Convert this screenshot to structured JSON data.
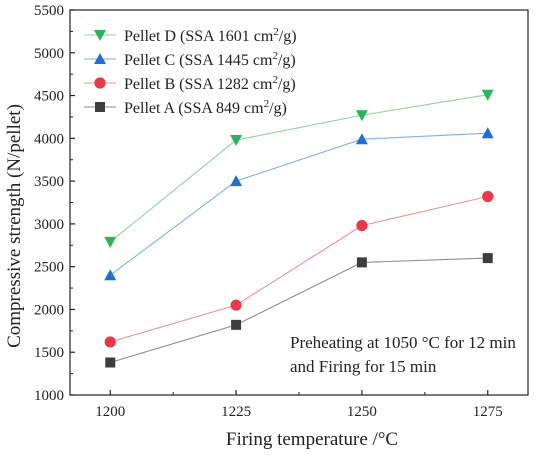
{
  "chart_data": {
    "type": "line",
    "title": "",
    "xlabel": "Firing temperature /°C",
    "ylabel": "Compressive strength (N/pellet)",
    "x": [
      1200,
      1225,
      1250,
      1275
    ],
    "xticks": [
      "1200",
      "1225",
      "1250",
      "1275"
    ],
    "xlim": [
      1192,
      1283
    ],
    "ylim": [
      1000,
      5500
    ],
    "yticks": [
      "1000",
      "1500",
      "2000",
      "2500",
      "3000",
      "3500",
      "4000",
      "4500",
      "5000",
      "5500"
    ],
    "grid": false,
    "legend_position": "top-left",
    "annotation": [
      "Preheating at 1050 °C for 12 min",
      "and Firing for 15 min"
    ],
    "series": [
      {
        "name": "Pellet D (SSA 1601 cm²/g)",
        "legend_main": "Pellet D (SSA 1601 cm",
        "legend_sup": "2",
        "legend_tail": "/g)",
        "marker": "triangle-down",
        "color": "#2db35d",
        "line_color": "#8fd3a2",
        "values": [
          2790,
          3980,
          4270,
          4510
        ]
      },
      {
        "name": "Pellet C (SSA 1445 cm²/g)",
        "legend_main": "Pellet C (SSA 1445 cm",
        "legend_sup": "2",
        "legend_tail": "/g)",
        "marker": "triangle-up",
        "color": "#1f6fd6",
        "line_color": "#7fb0ea",
        "values": [
          2400,
          3500,
          3990,
          4060
        ]
      },
      {
        "name": "Pellet B (SSA 1282 cm²/g)",
        "legend_main": "Pellet B (SSA 1282 cm",
        "legend_sup": "2",
        "legend_tail": "/g)",
        "marker": "circle",
        "color": "#e8394a",
        "line_color": "#f08e97",
        "values": [
          1620,
          2050,
          2980,
          3320
        ]
      },
      {
        "name": "Pellet A (SSA 849 cm²/g)",
        "legend_main": "Pellet A (SSA 849 cm",
        "legend_sup": "2",
        "legend_tail": "/g)",
        "marker": "square",
        "color": "#3d3d3d",
        "line_color": "#8c8c8c",
        "values": [
          1380,
          1820,
          2550,
          2600
        ]
      }
    ]
  }
}
